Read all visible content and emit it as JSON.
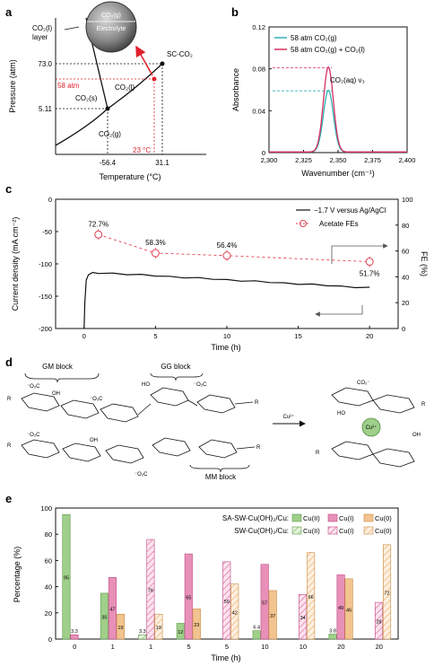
{
  "panel_labels": {
    "a": "a",
    "b": "b",
    "c": "c",
    "d": "d",
    "e": "e"
  },
  "phase_diagram": {
    "xlabel": "Temperature (°C)",
    "ylabel": "Pressure (atm)",
    "x_ticks": [
      "-56.4",
      "31.1"
    ],
    "y_ticks": [
      "73.0",
      "5.11"
    ],
    "regions": [
      "CO₂(s)",
      "CO₂(l)",
      "CO₂(g)",
      "SC-CO₂"
    ],
    "bubble_top": "CO₂(g)",
    "bubble_bottom": "Electrolyte",
    "layer_label_1": "CO₂(l)",
    "layer_label_2": "layer",
    "condition_pressure": "58 atm",
    "condition_temp": "23 °C",
    "accent": "#e0202a"
  },
  "chart_data": [
    {
      "type": "line",
      "panel": "b",
      "xlabel": "Wavenumber (cm⁻¹)",
      "ylabel": "Absorbance",
      "xlim": [
        2300,
        2400
      ],
      "ylim": [
        0,
        0.12
      ],
      "x_ticks": [
        "2,300",
        "2,325",
        "2,350",
        "2,375",
        "2,400"
      ],
      "y_ticks": [
        "0",
        "0.04",
        "0.08",
        "0.12"
      ],
      "annotation": "CO₂(aq) ν₃",
      "series": [
        {
          "name": "58 atm CO₂(g)",
          "color": "#2fb0b8",
          "peak_x": 2343,
          "peak_y": 0.059,
          "width": 3.6
        },
        {
          "name": "58 atm CO₂(g) + CO₂(l)",
          "color": "#d6305e",
          "peak_x": 2343,
          "peak_y": 0.081,
          "width": 3.6
        }
      ]
    },
    {
      "type": "line",
      "panel": "c",
      "xlabel": "Time (h)",
      "ylabel_left": "Current density (mA cm⁻²)",
      "ylabel_right": "FE (%)",
      "xlim": [
        -2,
        22
      ],
      "ylim_left": [
        -200,
        0
      ],
      "ylim_right": [
        0,
        100
      ],
      "x_ticks": [
        "0",
        "5",
        "10",
        "15",
        "20"
      ],
      "y_ticks_left": [
        "0",
        "-50",
        "-100",
        "-150",
        "-200"
      ],
      "y_ticks_right": [
        "0",
        "20",
        "40",
        "60",
        "80",
        "100"
      ],
      "series": [
        {
          "name": "−1.7 V versus Ag/AgCl",
          "color": "#111111",
          "x": [
            0,
            0.05,
            0.15,
            0.3,
            0.6,
            1,
            2,
            3,
            4,
            5,
            6,
            7,
            8,
            9,
            10,
            11,
            12,
            13,
            14,
            15,
            16,
            17,
            18,
            19,
            20
          ],
          "y": [
            -200,
            -160,
            -125,
            -117,
            -114,
            -114,
            -115,
            -116,
            -117,
            -118,
            -120,
            -121,
            -122,
            -123,
            -125,
            -126,
            -127,
            -128,
            -130,
            -131,
            -132,
            -133,
            -135,
            -136,
            -137
          ]
        },
        {
          "name": "Acetate FEs",
          "color": "#e04050",
          "x": [
            1,
            5,
            10,
            20
          ],
          "y": [
            72.7,
            58.3,
            56.4,
            51.7
          ],
          "labels": [
            "72.7%",
            "58.3%",
            "56.4%",
            "51.7%"
          ]
        }
      ]
    },
    {
      "type": "bar",
      "panel": "e",
      "xlabel": "Time (h)",
      "ylabel": "Percentage (%)",
      "ylim": [
        0,
        100
      ],
      "y_ticks": [
        "0",
        "20",
        "40",
        "60",
        "80",
        "100"
      ],
      "categories": [
        "0",
        "1",
        "1",
        "5",
        "5",
        "10",
        "10",
        "20",
        "20"
      ],
      "hatched": [
        false,
        false,
        true,
        false,
        true,
        false,
        true,
        false,
        true
      ],
      "legend_rows": [
        "SA-SW-Cu(OH)₂/Cu:",
        "SW-Cu(OH)₂/Cu:"
      ],
      "series": [
        {
          "name": "Cu(II)",
          "color": "#9fcf8a",
          "values": [
            95,
            35,
            3.3,
            12,
            0,
            6.4,
            0,
            3.8,
            0
          ],
          "labels": [
            "95",
            "35",
            "3.3",
            "12",
            "",
            "6.4",
            "",
            "3.8",
            ""
          ]
        },
        {
          "name": "Cu(I)",
          "color": "#e890b8",
          "values": [
            3.3,
            47,
            76,
            65,
            59,
            57,
            34,
            49,
            28
          ],
          "labels": [
            "3.3",
            "47",
            "76",
            "65",
            "59",
            "57",
            "34",
            "49",
            "28"
          ]
        },
        {
          "name": "Cu(0)",
          "color": "#f2c48f",
          "values": [
            0,
            19,
            19,
            23,
            42,
            37,
            66,
            46,
            72
          ],
          "labels": [
            "",
            "19",
            "19",
            "23",
            "42",
            "37",
            "66",
            "46",
            "72"
          ]
        }
      ]
    }
  ],
  "alginate": {
    "gm_block": "GM block",
    "gg_block": "GG block",
    "mm_block": "MM block",
    "cu_arrow": "Cu²⁺",
    "cu_ion": "Cu²⁺",
    "r": "R",
    "o": "O",
    "oh": "OH",
    "ho": "HO",
    "co2": "⁻O₂C",
    "co2b": "CO₂⁻"
  }
}
